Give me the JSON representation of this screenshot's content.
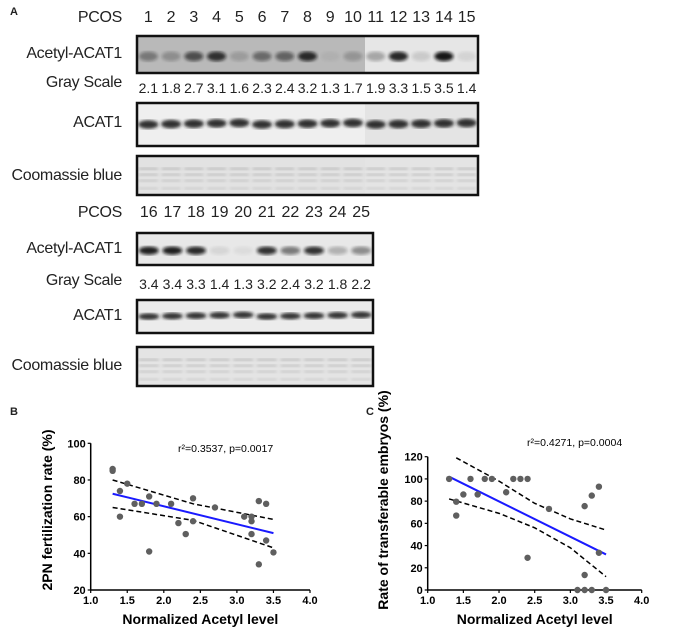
{
  "panels": {
    "a": "A",
    "b": "B",
    "c": "C"
  },
  "blot_top": {
    "group_label": "PCOS",
    "lanes": [
      "1",
      "2",
      "3",
      "4",
      "5",
      "6",
      "7",
      "8",
      "9",
      "10",
      "11",
      "12",
      "13",
      "14",
      "15"
    ],
    "acetyl_label": "Acetyl-ACAT1",
    "gray_label": "Gray Scale",
    "gray_values": [
      "2.1",
      "1.8",
      "2.7",
      "3.1",
      "1.6",
      "2.3",
      "2.4",
      "3.2",
      "1.3",
      "1.7",
      "1.9",
      "3.3",
      "1.5",
      "3.5",
      "1.4"
    ],
    "acat1_label": "ACAT1",
    "coomassie_label": "Coomassie blue"
  },
  "blot_bottom": {
    "group_label": "PCOS",
    "lanes": [
      "16",
      "17",
      "18",
      "19",
      "20",
      "21",
      "22",
      "23",
      "24",
      "25"
    ],
    "acetyl_label": "Acetyl-ACAT1",
    "gray_label": "Gray Scale",
    "gray_values": [
      "3.4",
      "3.4",
      "3.3",
      "1.4",
      "1.3",
      "3.2",
      "2.4",
      "3.2",
      "1.8",
      "2.2"
    ],
    "acat1_label": "ACAT1",
    "coomassie_label": "Coomassie blue"
  },
  "chart_data": [
    {
      "type": "scatter",
      "panel": "B",
      "xlabel": "Normalized Acetyl level",
      "ylabel": "2PN fertilization rate (%)",
      "annotation": "r²=0.3537, p=0.0017",
      "xlim": [
        1.0,
        4.0
      ],
      "ylim": [
        20,
        100
      ],
      "xticks": [
        "1.0",
        "1.5",
        "2.0",
        "2.5",
        "3.0",
        "3.5",
        "4.0"
      ],
      "yticks": [
        "20",
        "40",
        "60",
        "80",
        "100"
      ],
      "points": [
        [
          1.3,
          86
        ],
        [
          1.3,
          85
        ],
        [
          1.4,
          74
        ],
        [
          1.4,
          60
        ],
        [
          1.5,
          78
        ],
        [
          1.6,
          67
        ],
        [
          1.7,
          67
        ],
        [
          1.8,
          71
        ],
        [
          1.8,
          41
        ],
        [
          1.9,
          67
        ],
        [
          2.1,
          67
        ],
        [
          2.2,
          56.5
        ],
        [
          2.3,
          50.5
        ],
        [
          2.4,
          70
        ],
        [
          2.4,
          57.5
        ],
        [
          2.7,
          65
        ],
        [
          3.1,
          60
        ],
        [
          3.2,
          60
        ],
        [
          3.2,
          57.5
        ],
        [
          3.2,
          50.5
        ],
        [
          3.3,
          68.5
        ],
        [
          3.3,
          34
        ],
        [
          3.4,
          67
        ],
        [
          3.4,
          47
        ],
        [
          3.5,
          40.5
        ]
      ],
      "fit": [
        [
          1.3,
          72.5
        ],
        [
          3.5,
          51
        ]
      ],
      "ci_upper": [
        [
          1.3,
          80
        ],
        [
          2.4,
          67
        ],
        [
          3.5,
          58.5
        ]
      ],
      "ci_lower": [
        [
          1.3,
          65
        ],
        [
          2.4,
          58
        ],
        [
          3.5,
          43
        ]
      ],
      "colors": {
        "points": "#5f5f5f",
        "fit": "#1a1aff",
        "ci": "#000000"
      }
    },
    {
      "type": "scatter",
      "panel": "C",
      "xlabel": "Normalized Acetyl level",
      "ylabel": "Rate of  transferable embryos (%)",
      "annotation": "r²=0.4271, p=0.0004",
      "xlim": [
        1.0,
        4.0
      ],
      "ylim": [
        0,
        120
      ],
      "xticks": [
        "1.0",
        "1.5",
        "2.0",
        "2.5",
        "3.0",
        "3.5",
        "4.0"
      ],
      "yticks": [
        "0",
        "20",
        "40",
        "60",
        "80",
        "100",
        "120"
      ],
      "points": [
        [
          1.3,
          100
        ],
        [
          1.4,
          79.5
        ],
        [
          1.4,
          67
        ],
        [
          1.5,
          86
        ],
        [
          1.6,
          100
        ],
        [
          1.7,
          86
        ],
        [
          1.8,
          100
        ],
        [
          1.9,
          100
        ],
        [
          2.1,
          88
        ],
        [
          2.2,
          100
        ],
        [
          2.3,
          100
        ],
        [
          2.4,
          100
        ],
        [
          2.4,
          29
        ],
        [
          2.7,
          73
        ],
        [
          3.1,
          0
        ],
        [
          3.2,
          75.5
        ],
        [
          3.2,
          13.5
        ],
        [
          3.2,
          0
        ],
        [
          3.3,
          85
        ],
        [
          3.3,
          0
        ],
        [
          3.4,
          93
        ],
        [
          3.4,
          33.5
        ],
        [
          3.5,
          0
        ]
      ],
      "fit": [
        [
          1.3,
          102
        ],
        [
          3.5,
          32
        ]
      ],
      "ci_upper": [
        [
          1.4,
          119
        ],
        [
          2.0,
          98
        ],
        [
          2.5,
          78
        ],
        [
          3.0,
          64
        ],
        [
          3.5,
          54
        ]
      ],
      "ci_lower": [
        [
          1.3,
          82
        ],
        [
          2.0,
          69
        ],
        [
          2.5,
          56
        ],
        [
          3.0,
          38
        ],
        [
          3.5,
          12
        ]
      ],
      "colors": {
        "points": "#5f5f5f",
        "fit": "#1a1aff",
        "ci": "#000000"
      }
    }
  ]
}
